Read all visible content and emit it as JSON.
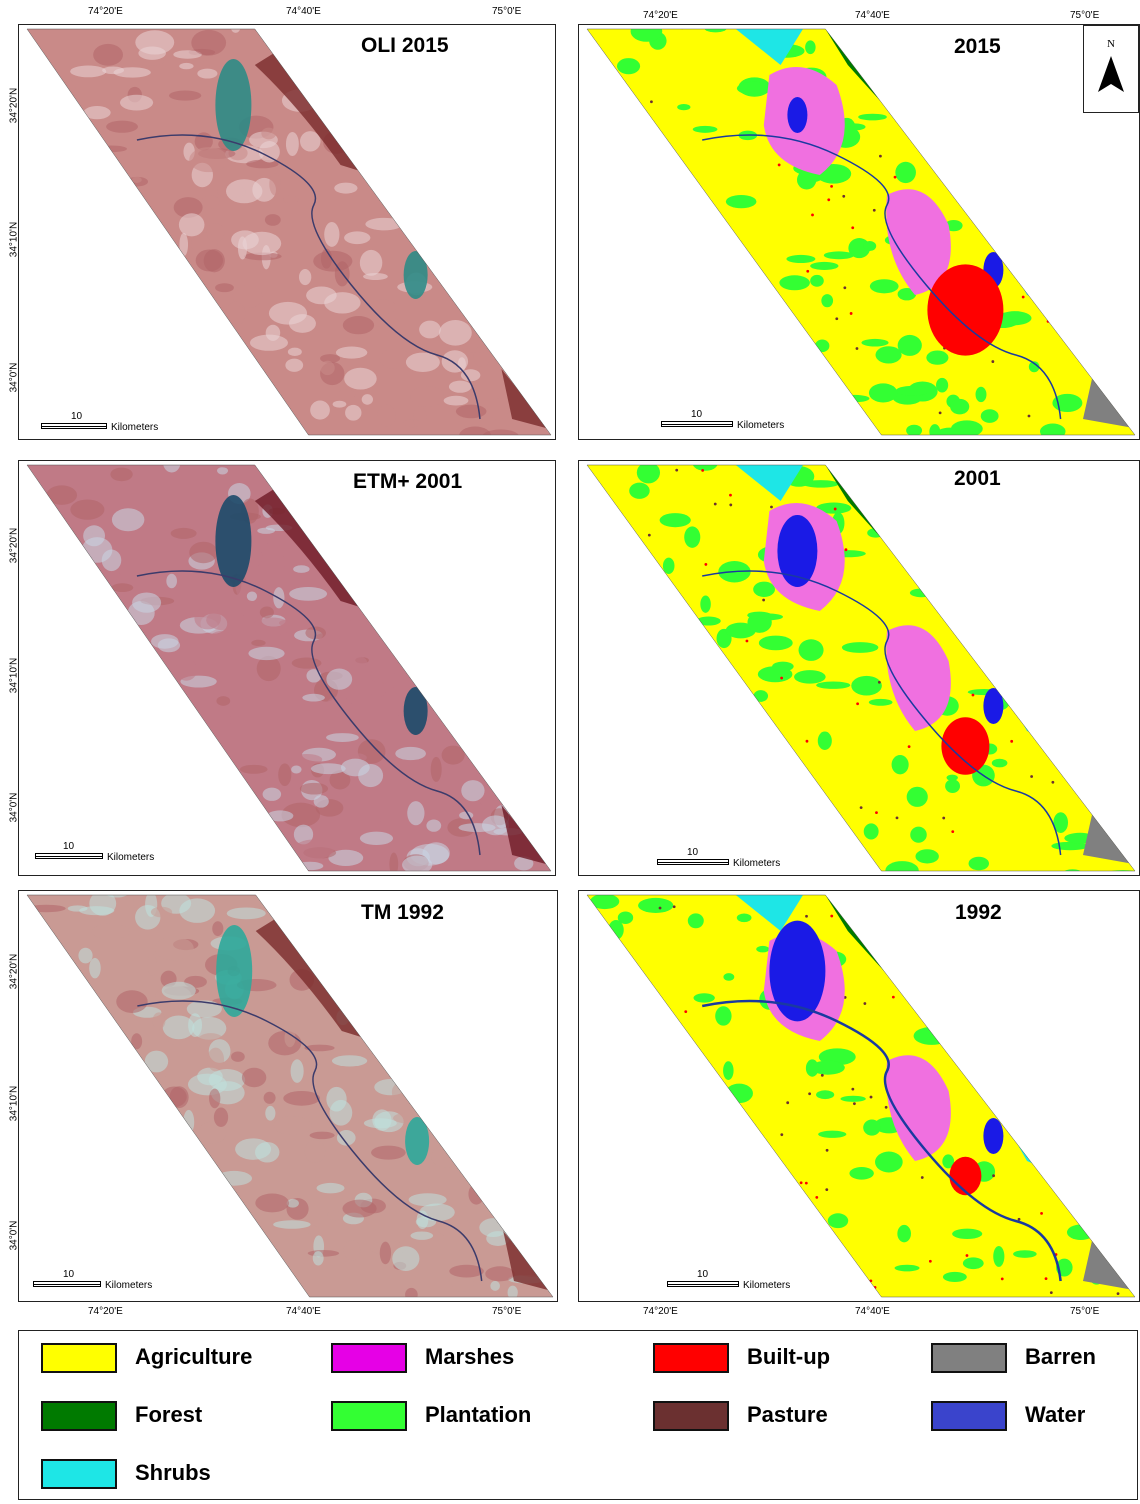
{
  "graticule": {
    "lon_labels": [
      "74°20'E",
      "74°40'E",
      "75°0'E"
    ],
    "lat_labels": [
      "34°20'N",
      "34°10'N",
      "34°0'N"
    ]
  },
  "panels": [
    {
      "id": "oli2015",
      "title": "OLI 2015",
      "kind": "satellite",
      "palette": "fcc2015"
    },
    {
      "id": "lc2015",
      "title": "2015",
      "kind": "classified",
      "north_arrow": true
    },
    {
      "id": "etm2001",
      "title": "ETM+ 2001",
      "kind": "satellite",
      "palette": "fcc2001"
    },
    {
      "id": "lc2001",
      "title": "2001",
      "kind": "classified",
      "north_arrow": false
    },
    {
      "id": "tm1992",
      "title": "TM 1992",
      "kind": "satellite",
      "palette": "fcc1992"
    },
    {
      "id": "lc1992",
      "title": "1992",
      "kind": "classified",
      "north_arrow": false
    }
  ],
  "scale_bar": {
    "value": "10",
    "unit": "Kilometers"
  },
  "north_arrow": {
    "label": "N"
  },
  "legend": [
    {
      "label": "Agriculture",
      "color": "#ffff00"
    },
    {
      "label": "Marshes",
      "color": "#e600e6"
    },
    {
      "label": "Built-up",
      "color": "#ff0000"
    },
    {
      "label": "Barren",
      "color": "#808080"
    },
    {
      "label": "Forest",
      "color": "#007a00"
    },
    {
      "label": "Plantation",
      "color": "#33ff33"
    },
    {
      "label": "Pasture",
      "color": "#6b3030"
    },
    {
      "label": "Water",
      "color": "#3a44cc"
    },
    {
      "label": "Shrubs",
      "color": "#1ee6e6"
    }
  ],
  "colors": {
    "fcc2015": {
      "base": "#c98a88",
      "light": "#e9d4d6",
      "dark": "#7a2a2c",
      "water": "#2e8b86"
    },
    "fcc2001": {
      "base": "#c07a86",
      "light": "#c9d6e3",
      "dark": "#6e1a26",
      "water": "#1c4a6a"
    },
    "fcc1992": {
      "base": "#c99a94",
      "light": "#bfe0dc",
      "dark": "#7a2a2a",
      "water": "#2ea89a"
    },
    "lc_agri": "#ffff00",
    "lc_plant": "#33ff33",
    "lc_marsh": "#f070e0",
    "lc_built": "#ff0000",
    "lc_water": "#1a1ae6",
    "lc_forest": "#007a00",
    "lc_shrub": "#1ee6e6",
    "lc_barren": "#808080",
    "lc_pasture": "#6b3030"
  }
}
